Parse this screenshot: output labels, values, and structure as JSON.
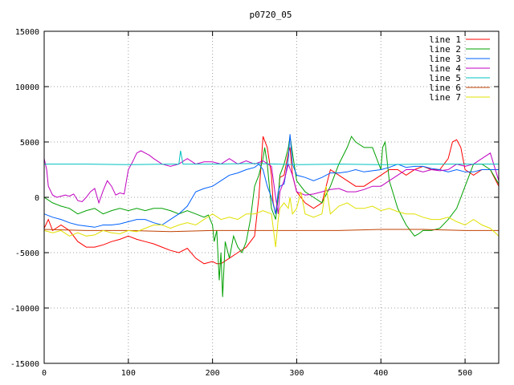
{
  "chart_data": {
    "type": "line",
    "title": "p0720_05",
    "xlabel": "",
    "ylabel": "",
    "xlim": [
      0,
      540
    ],
    "ylim": [
      -15000,
      15000
    ],
    "xticks": [
      0,
      100,
      200,
      300,
      400,
      500
    ],
    "yticks": [
      -15000,
      -10000,
      -5000,
      0,
      5000,
      10000,
      15000
    ],
    "grid": true,
    "legend_position": "top-right",
    "series": [
      {
        "name": "line 1",
        "color": "#ff0000",
        "x": [
          0,
          5,
          10,
          20,
          30,
          40,
          50,
          60,
          70,
          80,
          90,
          100,
          110,
          120,
          130,
          140,
          150,
          160,
          170,
          180,
          190,
          200,
          205,
          210,
          220,
          230,
          240,
          250,
          255,
          260,
          265,
          270,
          272,
          275,
          278,
          280,
          285,
          290,
          292,
          295,
          300,
          310,
          320,
          330,
          335,
          340,
          350,
          360,
          370,
          380,
          390,
          400,
          410,
          420,
          430,
          440,
          450,
          460,
          470,
          480,
          485,
          490,
          495,
          500,
          510,
          520,
          530,
          540
        ],
        "y": [
          -2800,
          -2000,
          -3000,
          -2500,
          -3000,
          -4000,
          -4500,
          -4500,
          -4300,
          -4000,
          -3800,
          -3500,
          -3800,
          -4000,
          -4200,
          -4500,
          -4800,
          -5000,
          -4600,
          -5500,
          -6000,
          -5800,
          -6000,
          -6000,
          -5500,
          -5000,
          -4500,
          -3500,
          0,
          5500,
          4500,
          2000,
          -500,
          -1500,
          0,
          1800,
          2000,
          4000,
          4500,
          2000,
          500,
          -500,
          -1000,
          -500,
          1000,
          2500,
          2000,
          1500,
          1000,
          1000,
          1500,
          2000,
          2500,
          2500,
          2000,
          2500,
          2800,
          2500,
          2500,
          3500,
          5000,
          5200,
          4500,
          2500,
          2000,
          2500,
          2500,
          1000
        ]
      },
      {
        "name": "line 2",
        "color": "#00a000",
        "x": [
          0,
          10,
          20,
          30,
          40,
          50,
          60,
          70,
          80,
          90,
          100,
          110,
          120,
          130,
          140,
          150,
          160,
          170,
          180,
          190,
          195,
          200,
          202,
          205,
          208,
          210,
          212,
          215,
          220,
          225,
          230,
          235,
          240,
          245,
          250,
          255,
          260,
          262,
          265,
          270,
          275,
          278,
          280,
          285,
          290,
          292,
          295,
          300,
          310,
          320,
          330,
          340,
          350,
          360,
          365,
          370,
          380,
          390,
          400,
          402,
          405,
          410,
          420,
          430,
          440,
          445,
          450,
          460,
          470,
          480,
          490,
          500,
          510,
          520,
          530,
          540
        ],
        "y": [
          0,
          -500,
          -800,
          -1000,
          -1500,
          -1200,
          -1000,
          -1500,
          -1200,
          -1000,
          -1200,
          -1000,
          -1200,
          -1000,
          -1000,
          -1200,
          -1500,
          -1200,
          -1500,
          -1800,
          -1600,
          -2500,
          -4000,
          -3000,
          -7500,
          -5000,
          -9000,
          -4000,
          -5500,
          -3500,
          -4500,
          -5000,
          -4000,
          -2000,
          1000,
          2000,
          3500,
          4500,
          3000,
          -1000,
          -2000,
          0,
          2000,
          3000,
          4500,
          5500,
          4000,
          1500,
          500,
          0,
          -500,
          1000,
          3000,
          4500,
          5500,
          5000,
          4500,
          4500,
          2500,
          4500,
          5000,
          1500,
          -1000,
          -2500,
          -3500,
          -3300,
          -3000,
          -3000,
          -2800,
          -2000,
          -1000,
          1000,
          3000,
          3000,
          2500,
          1200
        ]
      },
      {
        "name": "line 3",
        "color": "#0060ff",
        "x": [
          0,
          10,
          20,
          30,
          40,
          50,
          60,
          70,
          80,
          90,
          100,
          110,
          120,
          130,
          140,
          150,
          160,
          170,
          180,
          190,
          200,
          210,
          220,
          230,
          240,
          250,
          255,
          260,
          265,
          270,
          275,
          278,
          280,
          285,
          290,
          292,
          295,
          300,
          310,
          320,
          330,
          340,
          350,
          360,
          370,
          380,
          390,
          400,
          410,
          420,
          430,
          440,
          450,
          460,
          470,
          480,
          490,
          500,
          510,
          520,
          530,
          540
        ],
        "y": [
          -1500,
          -1800,
          -2000,
          -2300,
          -2500,
          -2600,
          -2700,
          -2500,
          -2500,
          -2400,
          -2200,
          -2000,
          -2000,
          -2300,
          -2500,
          -2000,
          -1500,
          -800,
          500,
          800,
          1000,
          1500,
          2000,
          2200,
          2500,
          2700,
          3000,
          2500,
          1000,
          0,
          -1500,
          500,
          1000,
          1200,
          3500,
          5700,
          3000,
          2000,
          1800,
          1500,
          1800,
          2200,
          2200,
          2300,
          2500,
          2300,
          2400,
          2500,
          2700,
          3000,
          2700,
          2800,
          2800,
          2600,
          2500,
          2300,
          2500,
          2300,
          2300,
          2500,
          2500,
          2500
        ]
      },
      {
        "name": "line 4",
        "color": "#c000c0",
        "x": [
          0,
          3,
          5,
          10,
          15,
          20,
          25,
          30,
          35,
          40,
          45,
          50,
          55,
          60,
          65,
          70,
          75,
          80,
          85,
          90,
          95,
          100,
          105,
          110,
          115,
          120,
          125,
          130,
          140,
          150,
          160,
          170,
          180,
          190,
          200,
          210,
          220,
          230,
          240,
          250,
          260,
          270,
          275,
          278,
          280,
          285,
          290,
          295,
          300,
          310,
          320,
          330,
          340,
          350,
          360,
          370,
          380,
          390,
          400,
          410,
          420,
          430,
          440,
          450,
          460,
          470,
          480,
          490,
          500,
          510,
          520,
          530,
          540
        ],
        "y": [
          3500,
          2500,
          1000,
          200,
          0,
          100,
          200,
          100,
          300,
          -300,
          -400,
          0,
          500,
          800,
          -500,
          600,
          1500,
          1000,
          200,
          400,
          300,
          2500,
          3200,
          4000,
          4200,
          4000,
          3800,
          3500,
          3000,
          2800,
          3000,
          3500,
          3000,
          3200,
          3200,
          3000,
          3500,
          3000,
          3300,
          3000,
          3300,
          2800,
          0,
          -1500,
          500,
          1500,
          3000,
          2000,
          500,
          200,
          300,
          500,
          700,
          800,
          500,
          500,
          700,
          1000,
          1000,
          1500,
          2000,
          2500,
          2500,
          2300,
          2500,
          2400,
          2500,
          3000,
          2800,
          3000,
          3500,
          4000,
          1500
        ]
      },
      {
        "name": "line 5",
        "color": "#00c0c0",
        "x": [
          0,
          50,
          100,
          150,
          160,
          162,
          165,
          170,
          200,
          250,
          300,
          350,
          400,
          450,
          500,
          540
        ],
        "y": [
          3000,
          3000,
          2950,
          3000,
          3000,
          4200,
          3000,
          3000,
          3000,
          3050,
          2950,
          3000,
          2950,
          3000,
          3000,
          3000
        ]
      },
      {
        "name": "line 6",
        "color": "#c04000",
        "x": [
          0,
          50,
          100,
          150,
          200,
          250,
          300,
          350,
          400,
          450,
          500,
          540
        ],
        "y": [
          -2900,
          -3000,
          -3000,
          -3100,
          -3000,
          -3000,
          -3000,
          -3000,
          -2900,
          -2900,
          -3000,
          -3000
        ]
      },
      {
        "name": "line 7",
        "color": "#e0e000",
        "x": [
          0,
          10,
          20,
          30,
          40,
          50,
          60,
          70,
          80,
          90,
          100,
          110,
          120,
          130,
          140,
          150,
          160,
          170,
          180,
          190,
          200,
          210,
          220,
          230,
          240,
          250,
          260,
          270,
          275,
          278,
          280,
          285,
          290,
          292,
          295,
          300,
          305,
          310,
          320,
          330,
          335,
          340,
          350,
          360,
          370,
          380,
          390,
          400,
          410,
          420,
          430,
          440,
          450,
          460,
          470,
          480,
          490,
          500,
          510,
          520,
          530,
          540
        ],
        "y": [
          -3000,
          -3200,
          -3000,
          -3500,
          -3200,
          -3500,
          -3400,
          -3000,
          -3200,
          -3300,
          -3000,
          -3100,
          -2800,
          -2500,
          -2500,
          -2800,
          -2500,
          -2300,
          -2500,
          -2000,
          -1500,
          -2000,
          -1800,
          -2000,
          -1500,
          -1500,
          -1200,
          -1500,
          -4500,
          -2000,
          -1000,
          -500,
          -1000,
          0,
          -1500,
          -1000,
          500,
          -1500,
          -1800,
          -1500,
          1000,
          -1500,
          -800,
          -500,
          -1000,
          -1000,
          -800,
          -1200,
          -1000,
          -1300,
          -1500,
          -1500,
          -1800,
          -2000,
          -2000,
          -1800,
          -2200,
          -2500,
          -2000,
          -2500,
          -2800,
          -3500
        ]
      }
    ]
  }
}
